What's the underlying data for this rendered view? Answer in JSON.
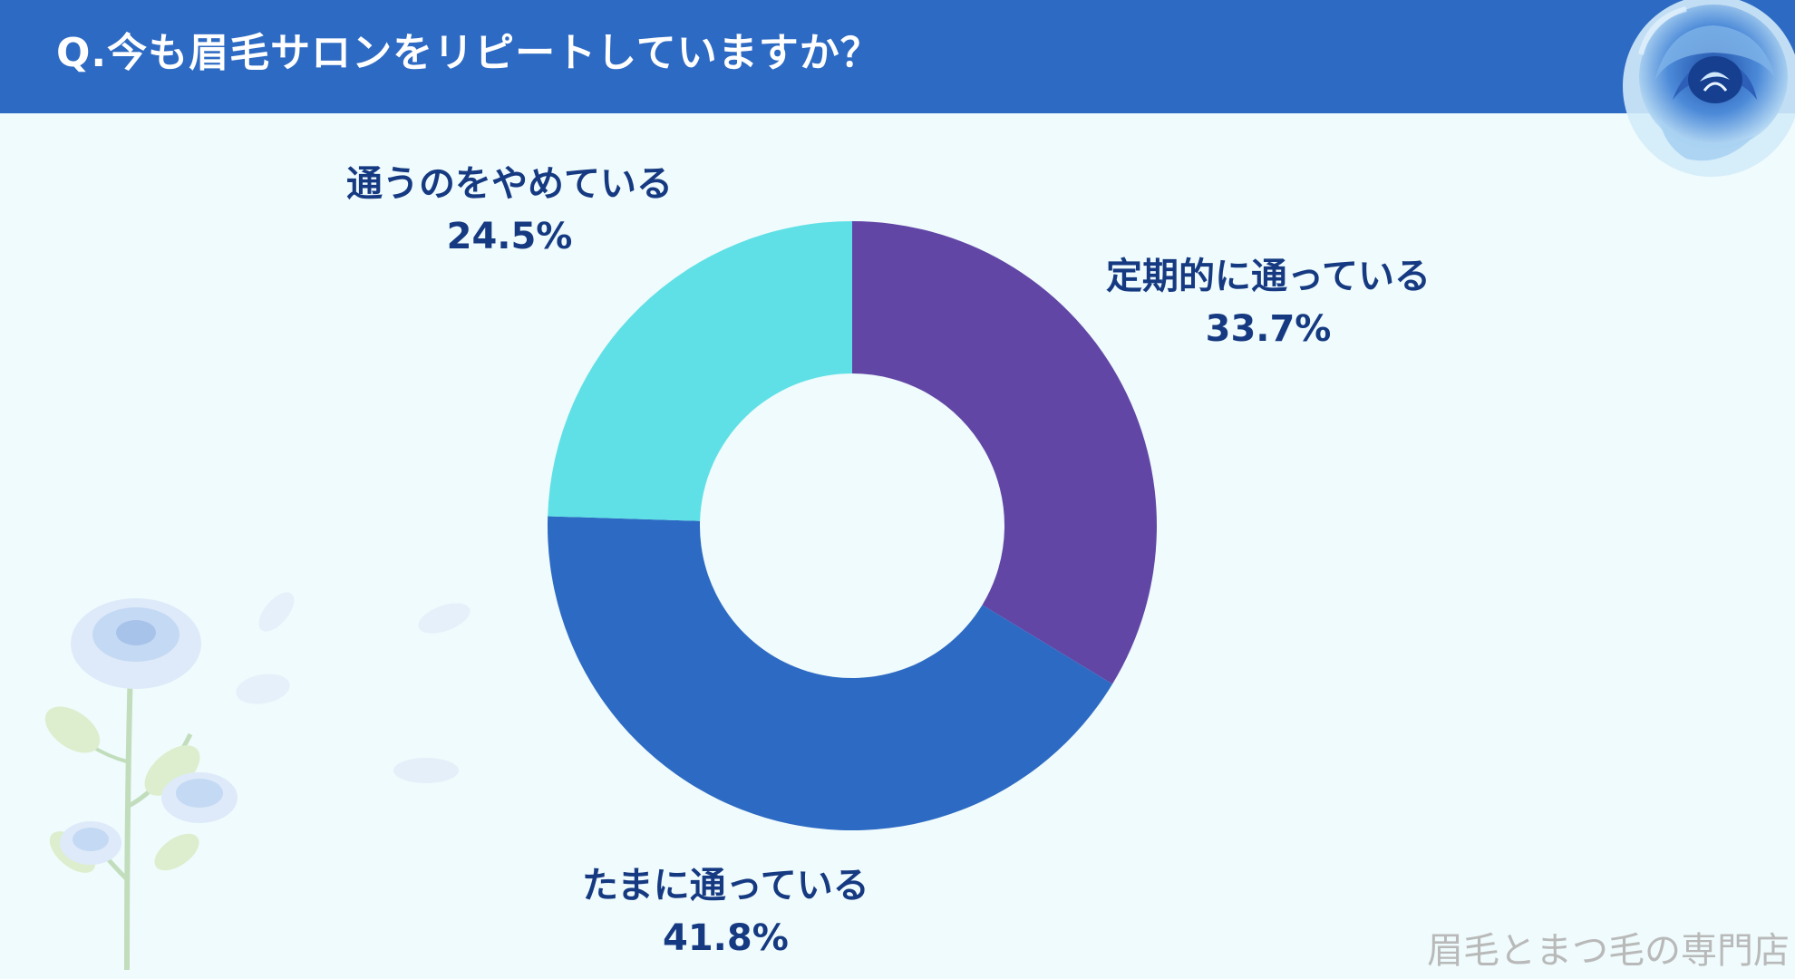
{
  "header": {
    "title": "Q.今も眉毛サロンをリピートしていますか？"
  },
  "colors": {
    "header_bg": "#2d6ac3",
    "background": "#effbfc",
    "label_text": "#163a82"
  },
  "chart_data": {
    "type": "pie",
    "title": "Q.今も眉毛サロンをリピートしていますか？",
    "donut": true,
    "slices": [
      {
        "label": "定期的に通っている",
        "value": 33.7,
        "display": "33.7%",
        "color": "#6246a6"
      },
      {
        "label": "たまに通っている",
        "value": 41.8,
        "display": "41.8%",
        "color": "#2d6ac3"
      },
      {
        "label": "通うのをやめている",
        "value": 24.5,
        "display": "24.5%",
        "color": "#5fe0e6"
      }
    ]
  },
  "watermark": "眉毛とまつ毛の専門店",
  "decorations": {
    "corner": "blue-rose-watercolor",
    "left": "blue-rose-flower-stem"
  }
}
